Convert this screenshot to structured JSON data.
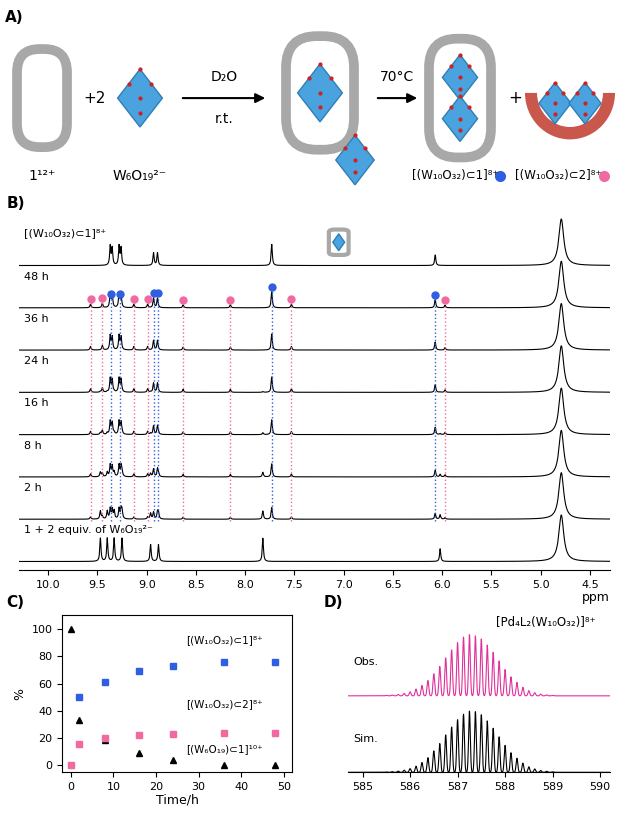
{
  "scheme": {
    "panel_label": "A)",
    "cage_1": "1¹²⁺",
    "plus_two": "+2",
    "guest": "W₆O₁₉²⁻",
    "step1_above": "D₂O",
    "step1_below": "r.t.",
    "step2_above": "70°C",
    "product_1": "[(W₁₀O₃₂)⊂1]⁸⁺",
    "product_1_color": "#2f5fe0",
    "plus": "+",
    "product_2": "[(W₁₀O₃₂)⊂2]⁸⁺",
    "product_2_color": "#f06aa0"
  },
  "chart_data": [
    {
      "type": "nmr_stack",
      "panel_label": "B)",
      "xlabel": "ppm",
      "xlim": [
        10.3,
        4.3
      ],
      "xticks": [
        10.0,
        9.5,
        9.0,
        8.5,
        8.0,
        7.5,
        7.0,
        6.5,
        6.0,
        5.5,
        5.0,
        4.5
      ],
      "tick_labels": "x",
      "species_peaks": [
        [
          [
            9.47,
            0.55
          ],
          [
            9.4,
            0.55
          ],
          [
            9.33,
            0.55
          ],
          [
            9.25,
            0.55
          ],
          [
            8.96,
            0.4
          ],
          [
            8.88,
            0.4
          ],
          [
            7.82,
            0.55
          ],
          [
            6.02,
            0.3
          ]
        ],
        [
          [
            9.37,
            0.45
          ],
          [
            9.35,
            0.4
          ],
          [
            9.28,
            0.45
          ],
          [
            9.26,
            0.4
          ],
          [
            8.93,
            0.3
          ],
          [
            8.89,
            0.3
          ],
          [
            7.73,
            0.5
          ],
          [
            6.07,
            0.25
          ]
        ],
        [
          [
            9.57,
            0.35
          ],
          [
            9.45,
            0.45
          ],
          [
            9.13,
            0.35
          ],
          [
            8.99,
            0.35
          ],
          [
            8.63,
            0.3
          ],
          [
            8.15,
            0.3
          ],
          [
            7.53,
            0.35
          ],
          [
            5.97,
            0.25
          ]
        ]
      ],
      "solvent_peak": [
        4.79,
        1.1
      ],
      "traces": [
        {
          "label": "1 + 2 equiv. of W₆O₁₉²⁻",
          "weights": [
            1,
            0,
            0
          ]
        },
        {
          "label": "2 h",
          "weights": [
            0.35,
            0.55,
            0.15
          ]
        },
        {
          "label": "8 h",
          "weights": [
            0.2,
            0.62,
            0.2
          ]
        },
        {
          "label": "16 h",
          "weights": [
            0.08,
            0.7,
            0.22
          ]
        },
        {
          "label": "24 h",
          "weights": [
            0.03,
            0.73,
            0.24
          ]
        },
        {
          "label": "36 h",
          "weights": [
            0,
            0.76,
            0.24
          ]
        },
        {
          "label": "48 h",
          "weights": [
            0,
            0.76,
            0.24
          ]
        },
        {
          "label": "[(W₁₀O₃₂)⊂1]⁸⁺",
          "weights": [
            0,
            1,
            0
          ]
        }
      ],
      "markers": {
        "trace": "48 h",
        "sets": [
          {
            "color": "#2f5fe0",
            "positions": [
              9.36,
              9.27,
              8.93,
              8.89,
              7.73,
              6.07
            ]
          },
          {
            "color": "#f06aa0",
            "positions": [
              9.57,
              9.45,
              9.13,
              8.99,
              8.63,
              8.15,
              7.53,
              5.97
            ]
          }
        ]
      }
    },
    {
      "type": "scatter",
      "panel_label": "C)",
      "xlabel": "Time/h",
      "ylabel": "%",
      "xlim": [
        -2,
        52
      ],
      "ylim": [
        -5,
        110
      ],
      "xticks": [
        0,
        10,
        20,
        30,
        40,
        50
      ],
      "yticks": [
        0,
        20,
        40,
        60,
        80,
        100
      ],
      "series": [
        {
          "name": "[(W₆O₁₉)⊂1]¹⁰⁺",
          "color": "#000000",
          "marker": "triangle",
          "x": [
            0,
            2,
            8,
            16,
            24,
            36,
            48
          ],
          "values": [
            100,
            33,
            19,
            9,
            4,
            0,
            0
          ]
        },
        {
          "name": "[(W₁₀O₃₂)⊂1]⁸⁺",
          "color": "#2f5fe0",
          "marker": "square",
          "x": [
            2,
            8,
            16,
            24,
            36,
            48
          ],
          "values": [
            50,
            61,
            69,
            73,
            76,
            76
          ]
        },
        {
          "name": "[(W₁₀O₃₂)⊂2]⁸⁺",
          "color": "#f06aa0",
          "marker": "square",
          "x": [
            0,
            2,
            8,
            16,
            24,
            36,
            48
          ],
          "values": [
            0,
            16,
            20,
            22,
            23,
            24,
            24
          ]
        }
      ]
    },
    {
      "type": "mass_spectrum",
      "panel_label": "D)",
      "title": "[Pd₄L₂(W₁₀O₃₂)]⁸⁺",
      "xlim": [
        584.7,
        590.2
      ],
      "xticks": [
        585,
        586,
        587,
        588,
        589,
        590
      ],
      "tick_labels": "x",
      "series": [
        {
          "name": "Obs.",
          "color": "#e0309a",
          "x": [
            585.5,
            585.625,
            585.75,
            585.875,
            586.0,
            586.125,
            586.25,
            586.375,
            586.5,
            586.625,
            586.75,
            586.875,
            587.0,
            587.125,
            587.25,
            587.375,
            587.5,
            587.625,
            587.75,
            587.875,
            588.0,
            588.125,
            588.25,
            588.375,
            588.5,
            588.625,
            588.75,
            588.875,
            589.0
          ],
          "values": [
            0.006,
            0.012,
            0.022,
            0.04,
            0.065,
            0.11,
            0.17,
            0.25,
            0.36,
            0.48,
            0.62,
            0.75,
            0.87,
            0.96,
            1.0,
            0.98,
            0.93,
            0.83,
            0.71,
            0.57,
            0.43,
            0.31,
            0.22,
            0.14,
            0.085,
            0.05,
            0.028,
            0.015,
            0.007
          ]
        },
        {
          "name": "Sim.",
          "color": "#000000",
          "x": [
            585.5,
            585.625,
            585.75,
            585.875,
            586.0,
            586.125,
            586.25,
            586.375,
            586.5,
            586.625,
            586.75,
            586.875,
            587.0,
            587.125,
            587.25,
            587.375,
            587.5,
            587.625,
            587.75,
            587.875,
            588.0,
            588.125,
            588.25,
            588.375,
            588.5,
            588.625,
            588.75,
            588.875,
            589.0
          ],
          "values": [
            0.005,
            0.01,
            0.02,
            0.035,
            0.06,
            0.1,
            0.16,
            0.24,
            0.35,
            0.47,
            0.61,
            0.74,
            0.86,
            0.95,
            1.0,
            0.99,
            0.94,
            0.84,
            0.72,
            0.58,
            0.44,
            0.32,
            0.23,
            0.15,
            0.09,
            0.055,
            0.03,
            0.017,
            0.008
          ]
        }
      ]
    }
  ]
}
